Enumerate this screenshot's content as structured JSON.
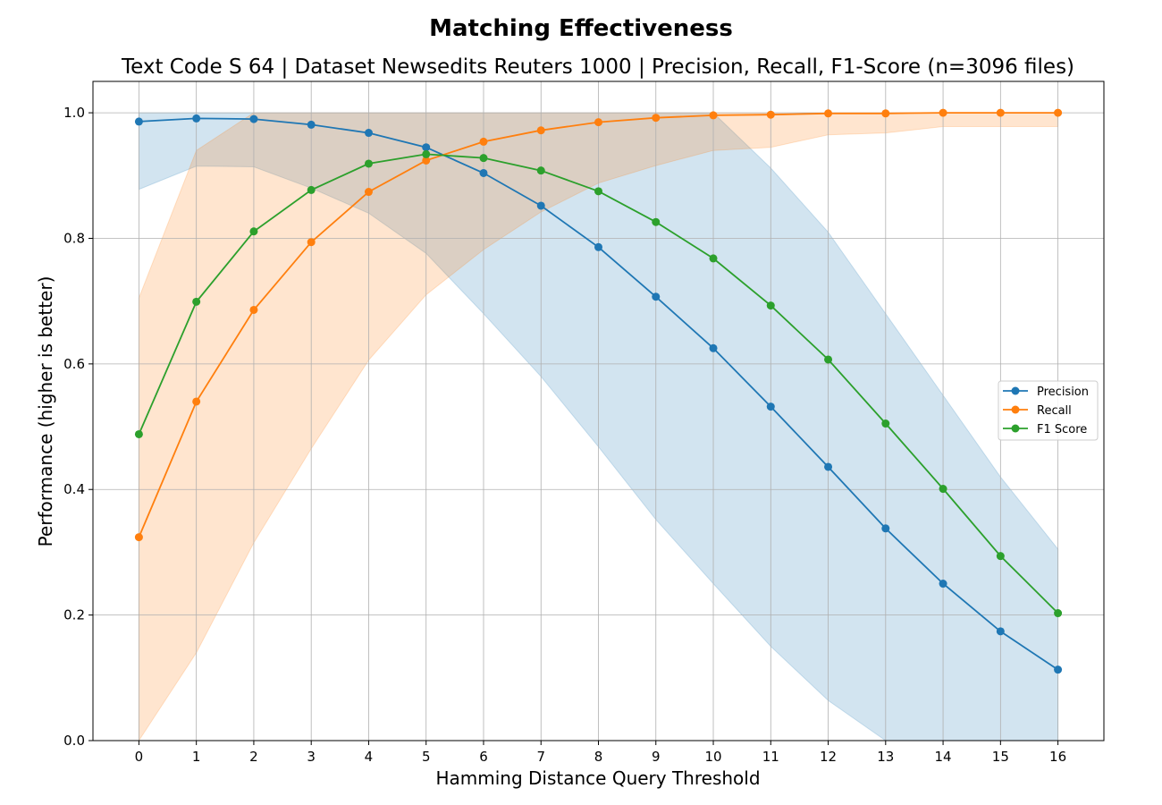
{
  "chart_data": {
    "type": "line",
    "title": "Matching Effectiveness",
    "subtitle": "Text Code S 64 | Dataset Newsedits Reuters 1000 | Precision, Recall, F1-Score (n=3096 files)",
    "xlabel": "Hamming Distance Query Threshold",
    "ylabel": "Performance (higher is better)",
    "xlim": [
      -0.8,
      16.8
    ],
    "ylim": [
      0.0,
      1.05
    ],
    "grid": true,
    "legend_position": "center-right",
    "x": [
      0,
      1,
      2,
      3,
      4,
      5,
      6,
      7,
      8,
      9,
      10,
      11,
      12,
      13,
      14,
      15,
      16
    ],
    "x_ticks": [
      "0",
      "1",
      "2",
      "3",
      "4",
      "5",
      "6",
      "7",
      "8",
      "9",
      "10",
      "11",
      "12",
      "13",
      "14",
      "15",
      "16"
    ],
    "y_ticks": [
      "0.0",
      "0.2",
      "0.4",
      "0.6",
      "0.8",
      "1.0"
    ],
    "y_tick_values": [
      0.0,
      0.2,
      0.4,
      0.6,
      0.8,
      1.0
    ],
    "series": [
      {
        "name": "Precision",
        "color": "#1f77b4",
        "values": [
          0.986,
          0.991,
          0.99,
          0.981,
          0.968,
          0.945,
          0.904,
          0.852,
          0.786,
          0.707,
          0.625,
          0.532,
          0.436,
          0.338,
          0.25,
          0.174,
          0.113
        ],
        "band_low": [
          0.878,
          0.915,
          0.914,
          0.88,
          0.84,
          0.776,
          0.68,
          0.58,
          0.468,
          0.352,
          0.25,
          0.15,
          0.064,
          0.0,
          0.0,
          0.0,
          0.0
        ],
        "band_high": [
          1.0,
          1.0,
          1.0,
          1.0,
          1.0,
          1.0,
          1.0,
          1.0,
          1.0,
          1.0,
          1.0,
          0.912,
          0.81,
          0.68,
          0.55,
          0.42,
          0.305
        ]
      },
      {
        "name": "Recall",
        "color": "#ff7f0e",
        "values": [
          0.324,
          0.54,
          0.686,
          0.794,
          0.874,
          0.924,
          0.954,
          0.972,
          0.985,
          0.992,
          0.996,
          0.997,
          0.999,
          0.999,
          1.0,
          1.0,
          1.0
        ],
        "band_low": [
          0.0,
          0.14,
          0.315,
          0.465,
          0.606,
          0.71,
          0.782,
          0.842,
          0.888,
          0.916,
          0.94,
          0.945,
          0.965,
          0.968,
          0.978,
          0.978,
          0.978
        ],
        "band_high": [
          0.705,
          0.94,
          1.0,
          1.0,
          1.0,
          1.0,
          1.0,
          1.0,
          1.0,
          1.0,
          1.0,
          1.0,
          1.0,
          1.0,
          1.0,
          1.0,
          1.0
        ]
      },
      {
        "name": "F1 Score",
        "color": "#2ca02c",
        "values": [
          0.488,
          0.699,
          0.811,
          0.877,
          0.919,
          0.934,
          0.928,
          0.908,
          0.875,
          0.826,
          0.768,
          0.693,
          0.607,
          0.505,
          0.401,
          0.294,
          0.203
        ]
      }
    ]
  }
}
